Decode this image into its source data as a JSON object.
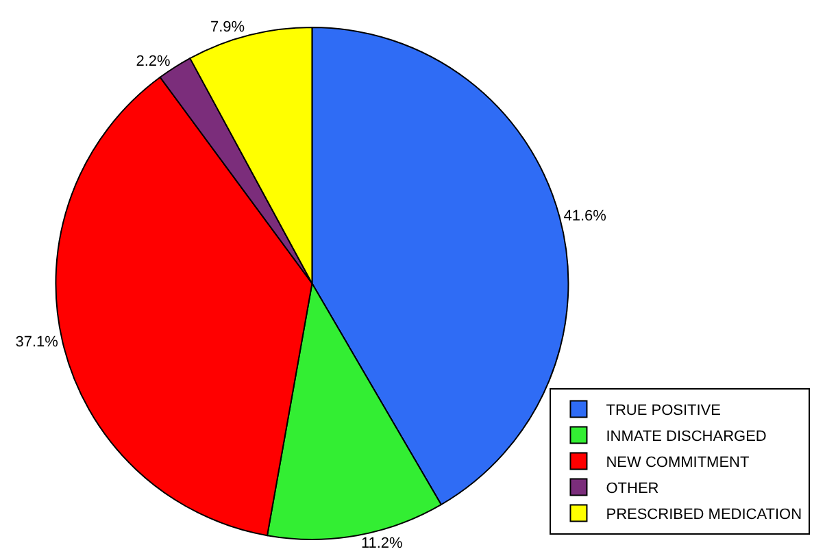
{
  "chart_data": {
    "type": "pie",
    "categories": [
      "TRUE POSITIVE",
      "INMATE DISCHARGED",
      "NEW COMMITMENT",
      "OTHER",
      "PRESCRIBED MEDICATION"
    ],
    "values": [
      41.6,
      11.2,
      37.1,
      2.2,
      7.9
    ],
    "value_labels": [
      "41.6%",
      "11.2%",
      "37.1%",
      "2.2%",
      "7.9%"
    ],
    "colors": [
      "#2f6cf5",
      "#33ee33",
      "#ff0000",
      "#7b2d7b",
      "#ffff00"
    ],
    "legend": "bottom right"
  }
}
